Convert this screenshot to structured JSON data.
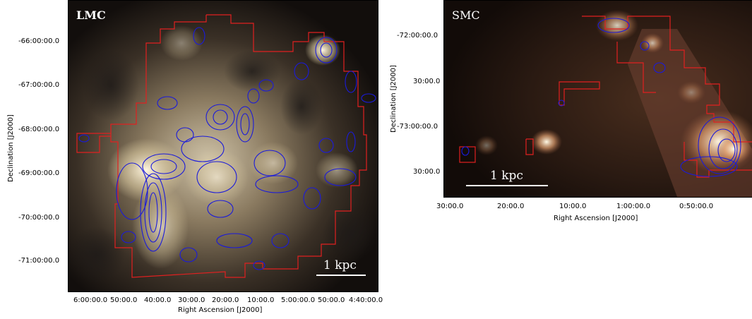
{
  "lmc": {
    "name": "LMC",
    "ylabel": "Declination [J2000]",
    "xlabel": "Right Ascension [J2000]",
    "yticks": [
      "-66:00:00.0",
      "-67:00:00.0",
      "-68:00:00.0",
      "-69:00:00.0",
      "-70:00:00.0",
      "-71:00:00.0"
    ],
    "xticks": [
      "6:00:00.0",
      "50:00.0",
      "40:00.0",
      "30:00.0",
      "20:00.0",
      "10:00.0",
      "5:00:00.0",
      "50:00.0",
      "4:40:00.0"
    ],
    "scale_label": "1 kpc"
  },
  "smc": {
    "name": "SMC",
    "ylabel": "Declination [J2000]",
    "xlabel": "Right Ascension [J2000]",
    "yticks": [
      "-72:00:00.0",
      "30:00.0",
      "-73:00:00.0",
      "30:00.0"
    ],
    "xticks": [
      "30:00.0",
      "20:00.0",
      "10:00.0",
      "1:00:00.0",
      "0:50:00.0"
    ],
    "scale_label": "1 kpc"
  },
  "colors": {
    "contour": "#1a1adb",
    "survey_outline": "#e02020",
    "label_text": "#ffffff"
  }
}
